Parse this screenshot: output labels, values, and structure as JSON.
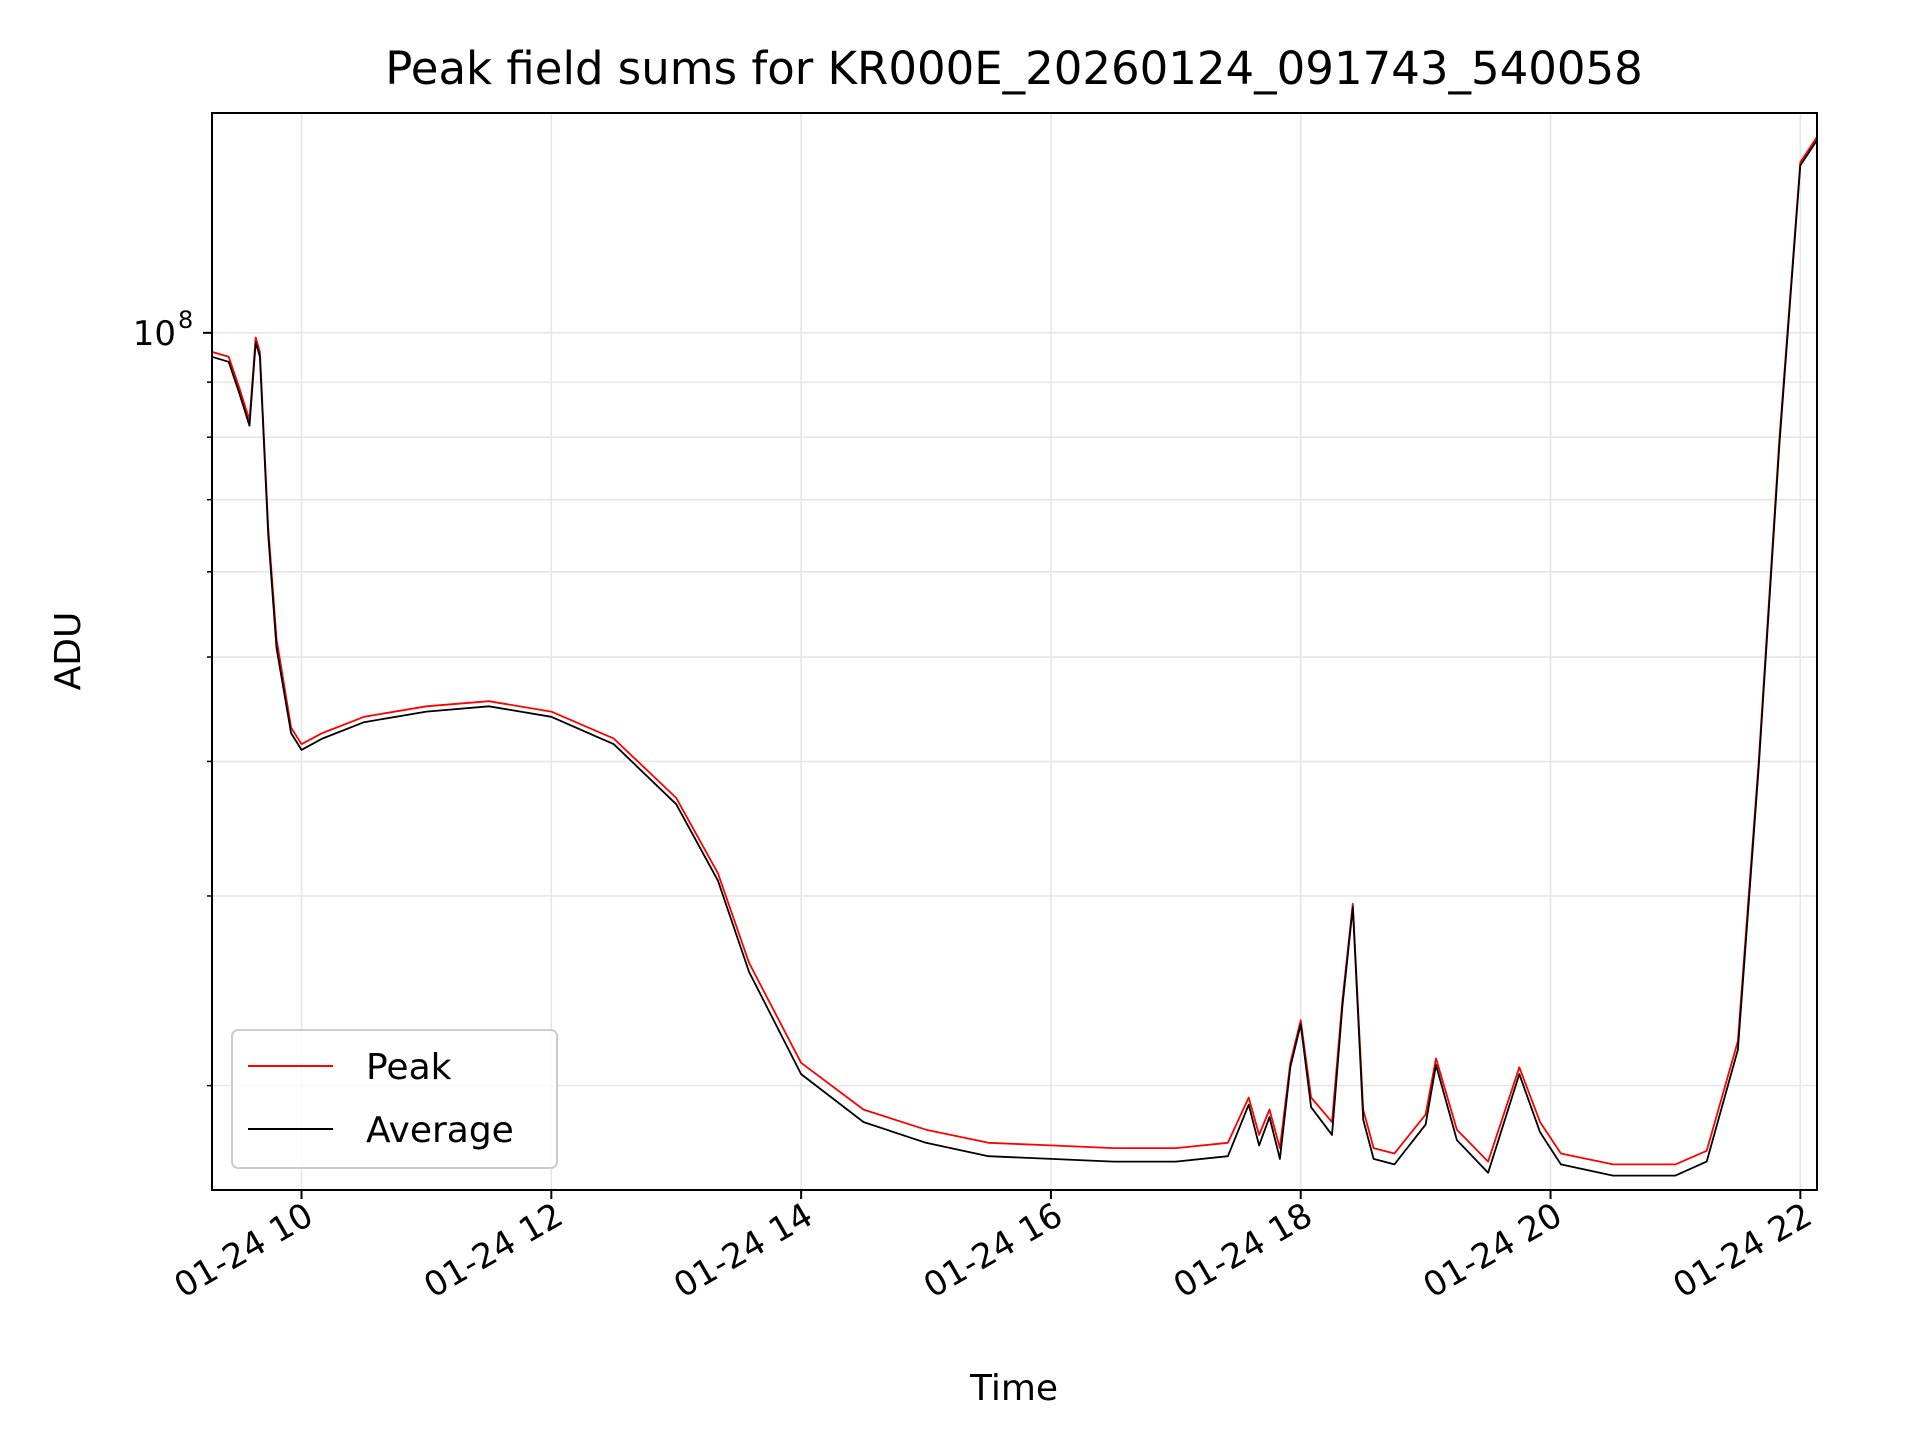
{
  "chart_data": {
    "type": "line",
    "title": "Peak field sums for KR000E_20260124_091743_540058",
    "xlabel": "Time",
    "ylabel": "ADU",
    "x_unit": "datetime",
    "xlim": [
      "2026-01-24 09:17",
      "2026-01-24 22:08"
    ],
    "ylim": [
      16000000,
      160000000
    ],
    "yscale": "log",
    "grid": true,
    "legend": {
      "placement": "lower-left"
    },
    "x_ticks": [
      {
        "value": "2026-01-24 10:00",
        "label": "01-24 10"
      },
      {
        "value": "2026-01-24 12:00",
        "label": "01-24 12"
      },
      {
        "value": "2026-01-24 14:00",
        "label": "01-24 14"
      },
      {
        "value": "2026-01-24 16:00",
        "label": "01-24 16"
      },
      {
        "value": "2026-01-24 18:00",
        "label": "01-24 18"
      },
      {
        "value": "2026-01-24 20:00",
        "label": "01-24 20"
      },
      {
        "value": "2026-01-24 22:00",
        "label": "01-24 22"
      }
    ],
    "y_ticks": [
      {
        "value": 100000000,
        "label": "10",
        "sup": "8"
      }
    ],
    "y_minor_ticks": [
      20000000,
      30000000,
      40000000,
      50000000,
      60000000,
      70000000,
      80000000,
      90000000
    ],
    "series": [
      {
        "name": "Peak",
        "color": "#ff0000",
        "x": [
          "2026-01-24 09:17",
          "2026-01-24 09:25",
          "2026-01-24 09:30",
          "2026-01-24 09:35",
          "2026-01-24 09:38",
          "2026-01-24 09:40",
          "2026-01-24 09:44",
          "2026-01-24 09:48",
          "2026-01-24 09:55",
          "2026-01-24 10:00",
          "2026-01-24 10:10",
          "2026-01-24 10:30",
          "2026-01-24 11:00",
          "2026-01-24 11:30",
          "2026-01-24 12:00",
          "2026-01-24 12:30",
          "2026-01-24 13:00",
          "2026-01-24 13:20",
          "2026-01-24 13:35",
          "2026-01-24 14:00",
          "2026-01-24 14:30",
          "2026-01-24 15:00",
          "2026-01-24 15:30",
          "2026-01-24 16:00",
          "2026-01-24 16:30",
          "2026-01-24 17:00",
          "2026-01-24 17:25",
          "2026-01-24 17:35",
          "2026-01-24 17:40",
          "2026-01-24 17:45",
          "2026-01-24 17:50",
          "2026-01-24 17:55",
          "2026-01-24 18:00",
          "2026-01-24 18:05",
          "2026-01-24 18:15",
          "2026-01-24 18:20",
          "2026-01-24 18:25",
          "2026-01-24 18:30",
          "2026-01-24 18:35",
          "2026-01-24 18:45",
          "2026-01-24 19:00",
          "2026-01-24 19:05",
          "2026-01-24 19:15",
          "2026-01-24 19:30",
          "2026-01-24 19:45",
          "2026-01-24 19:55",
          "2026-01-24 20:05",
          "2026-01-24 20:30",
          "2026-01-24 21:00",
          "2026-01-24 21:15",
          "2026-01-24 21:30",
          "2026-01-24 21:40",
          "2026-01-24 21:50",
          "2026-01-24 22:00",
          "2026-01-24 22:08"
        ],
        "values": [
          96000000,
          95000000,
          89000000,
          83000000,
          99000000,
          96000000,
          66000000,
          52000000,
          43000000,
          41500000,
          42500000,
          44000000,
          45000000,
          45500000,
          44500000,
          42000000,
          37000000,
          31500000,
          26000000,
          21000000,
          19000000,
          18200000,
          17700000,
          17600000,
          17500000,
          17500000,
          17700000,
          19500000,
          18000000,
          19000000,
          17500000,
          21000000,
          23000000,
          19500000,
          18500000,
          24000000,
          29500000,
          19000000,
          17500000,
          17300000,
          18800000,
          21200000,
          18200000,
          17000000,
          20800000,
          18500000,
          17300000,
          16900000,
          16900000,
          17400000,
          22000000,
          40000000,
          80000000,
          144000000,
          152000000
        ]
      },
      {
        "name": "Average",
        "color": "#000000",
        "x": [
          "2026-01-24 09:17",
          "2026-01-24 09:25",
          "2026-01-24 09:30",
          "2026-01-24 09:35",
          "2026-01-24 09:38",
          "2026-01-24 09:40",
          "2026-01-24 09:44",
          "2026-01-24 09:48",
          "2026-01-24 09:55",
          "2026-01-24 10:00",
          "2026-01-24 10:10",
          "2026-01-24 10:30",
          "2026-01-24 11:00",
          "2026-01-24 11:30",
          "2026-01-24 12:00",
          "2026-01-24 12:30",
          "2026-01-24 13:00",
          "2026-01-24 13:20",
          "2026-01-24 13:35",
          "2026-01-24 14:00",
          "2026-01-24 14:30",
          "2026-01-24 15:00",
          "2026-01-24 15:30",
          "2026-01-24 16:00",
          "2026-01-24 16:30",
          "2026-01-24 17:00",
          "2026-01-24 17:25",
          "2026-01-24 17:35",
          "2026-01-24 17:40",
          "2026-01-24 17:45",
          "2026-01-24 17:50",
          "2026-01-24 17:55",
          "2026-01-24 18:00",
          "2026-01-24 18:05",
          "2026-01-24 18:15",
          "2026-01-24 18:20",
          "2026-01-24 18:25",
          "2026-01-24 18:30",
          "2026-01-24 18:35",
          "2026-01-24 18:45",
          "2026-01-24 19:00",
          "2026-01-24 19:05",
          "2026-01-24 19:15",
          "2026-01-24 19:30",
          "2026-01-24 19:45",
          "2026-01-24 19:55",
          "2026-01-24 20:05",
          "2026-01-24 20:30",
          "2026-01-24 21:00",
          "2026-01-24 21:15",
          "2026-01-24 21:30",
          "2026-01-24 21:40",
          "2026-01-24 21:50",
          "2026-01-24 22:00",
          "2026-01-24 22:08"
        ],
        "values": [
          95000000,
          94000000,
          88000000,
          82000000,
          98000000,
          95000000,
          65000000,
          51000000,
          42500000,
          41000000,
          42000000,
          43500000,
          44500000,
          45000000,
          44000000,
          41500000,
          36500000,
          31000000,
          25500000,
          20500000,
          18500000,
          17700000,
          17200000,
          17100000,
          17000000,
          17000000,
          17200000,
          19200000,
          17600000,
          18700000,
          17100000,
          20800000,
          22800000,
          19100000,
          18000000,
          23700000,
          29300000,
          18600000,
          17100000,
          16900000,
          18400000,
          20900000,
          17800000,
          16600000,
          20500000,
          18100000,
          16900000,
          16500000,
          16500000,
          17000000,
          21600000,
          39500000,
          79000000,
          143000000,
          151000000
        ]
      }
    ]
  }
}
